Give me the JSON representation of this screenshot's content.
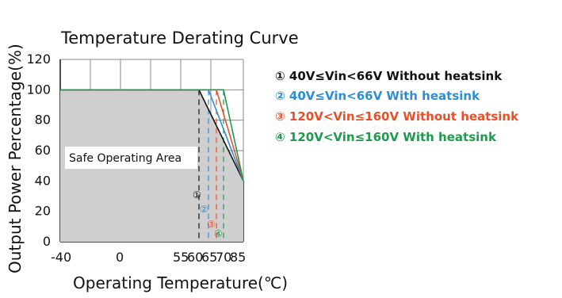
{
  "chart_data": {
    "type": "line",
    "title": "Temperature Derating Curve",
    "xlabel": "Operating Temperature(℃)",
    "ylabel": "Output Power Percentage(%)",
    "xlim": [
      -40,
      85
    ],
    "ylim": [
      0,
      120
    ],
    "x_ticks": [
      "-40",
      "0",
      "55",
      "60",
      "65",
      "70",
      "85"
    ],
    "y_ticks": [
      "0",
      "20",
      "40",
      "60",
      "80",
      "100",
      "120"
    ],
    "grid": true,
    "legend_position": "right",
    "area_label": "Safe Operating Area",
    "series": [
      {
        "marker": "①",
        "name": "40V≤Vin<66V Without heatsink",
        "color": "#111111",
        "knee_x": 55,
        "end_x": 85,
        "end_y": 40,
        "points": [
          [
            -40,
            100
          ],
          [
            55,
            100
          ],
          [
            85,
            40
          ]
        ]
      },
      {
        "marker": "②",
        "name": "40V≤Vin<66V With heatsink",
        "color": "#2a8fd8",
        "knee_x": 60,
        "end_x": 85,
        "end_y": 40,
        "points": [
          [
            -40,
            100
          ],
          [
            60,
            100
          ],
          [
            85,
            40
          ]
        ]
      },
      {
        "marker": "③",
        "name": "120V<Vin≤160V Without heatsink",
        "color": "#e8502a",
        "knee_x": 65,
        "end_x": 85,
        "end_y": 40,
        "points": [
          [
            -40,
            100
          ],
          [
            65,
            100
          ],
          [
            85,
            40
          ]
        ]
      },
      {
        "marker": "④",
        "name": "120V<Vin≤160V With heatsink",
        "color": "#1f9a4c",
        "knee_x": 70,
        "end_x": 85,
        "end_y": 40,
        "points": [
          [
            -40,
            100
          ],
          [
            70,
            100
          ],
          [
            85,
            40
          ]
        ]
      }
    ]
  }
}
